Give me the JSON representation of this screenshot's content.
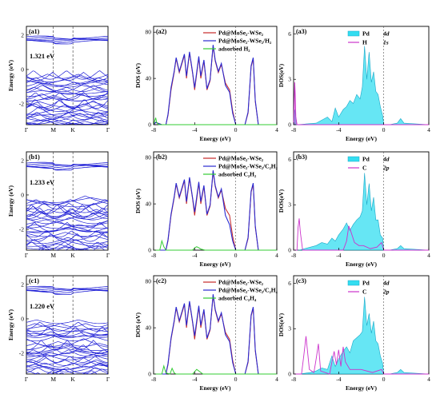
{
  "figure": {
    "rows": [
      {
        "band": {
          "label": "(a1)",
          "gap_text": "1.321 eV",
          "ylabel": "Energy (eV)",
          "yticks": [
            "2",
            "0",
            "-2"
          ],
          "xticks": [
            "Γ",
            "M",
            "K",
            "Γ"
          ]
        },
        "tdos": {
          "label": "(a2)",
          "ylabel": "DOS (eV)",
          "xlabel": "Energy (eV)",
          "yticks": [
            "0",
            "40",
            "80"
          ],
          "xticks": [
            "-8",
            "-4",
            "0",
            "4"
          ],
          "legend": [
            "Pd@MoSe₂-WSe₂",
            "Pd@MoSe₂-WSe₂/H₂",
            "adsorbed H₂"
          ]
        },
        "pdos": {
          "label": "(a3)",
          "ylabel": "DOS(eV)",
          "xlabel": "Energy (eV)",
          "yticks": [
            "0",
            "3",
            "6"
          ],
          "xticks": [
            "-8",
            "-4",
            "0",
            "4"
          ],
          "legend": [
            {
              "el": "Pd",
              "orb": "4d"
            },
            {
              "el": "H",
              "orb": "1s"
            }
          ]
        }
      },
      {
        "band": {
          "label": "(b1)",
          "gap_text": "1.233 eV",
          "ylabel": "Energy (eV)",
          "yticks": [
            "2",
            "0",
            "-2"
          ],
          "xticks": [
            "Γ",
            "M",
            "K",
            "Γ"
          ]
        },
        "tdos": {
          "label": "(b2)",
          "ylabel": "DOS (eV)",
          "xlabel": "Energy (eV)",
          "yticks": [
            "0",
            "40",
            "80"
          ],
          "xticks": [
            "-8",
            "-4",
            "0",
            "4"
          ],
          "legend": [
            "Pd@MoSe₂-WSe₂",
            "Pd@MoSe₂-WSe₂/C₂H₂",
            "adsorbed C₂H₂"
          ]
        },
        "pdos": {
          "label": "(b3)",
          "ylabel": "DOS(eV)",
          "xlabel": "Energy (eV)",
          "yticks": [
            "0",
            "3",
            "6"
          ],
          "xticks": [
            "-8",
            "-4",
            "0",
            "4"
          ],
          "legend": [
            {
              "el": "Pd",
              "orb": "4d"
            },
            {
              "el": "C",
              "orb": "2p"
            }
          ]
        }
      },
      {
        "band": {
          "label": "(c1)",
          "gap_text": "1.220 eV",
          "ylabel": "Energy (eV)",
          "yticks": [
            "2",
            "0",
            "-2"
          ],
          "xticks": [
            "Γ",
            "M",
            "K",
            "Γ"
          ]
        },
        "tdos": {
          "label": "(c2)",
          "ylabel": "DOS (eV)",
          "xlabel": "Energy (eV)",
          "yticks": [
            "0",
            "40",
            "80"
          ],
          "xticks": [
            "-8",
            "-4",
            "0",
            "4"
          ],
          "legend": [
            "Pd@MoSe₂-WSe₂",
            "Pd@MoSe₂-WSe₂/C₂H₄",
            "adsorbed C₂H₄"
          ]
        },
        "pdos": {
          "label": "(c3)",
          "ylabel": "DOS(eV)",
          "xlabel": "Energy (eV)",
          "yticks": [
            "0",
            "3",
            "6"
          ],
          "xticks": [
            "-8",
            "-4",
            "0",
            "4"
          ],
          "legend": [
            {
              "el": "Pd",
              "orb": "4d"
            },
            {
              "el": "C",
              "orb": "2p"
            }
          ]
        }
      }
    ],
    "colors": {
      "band_line": "#1f1fd6",
      "pristine": "#c62828",
      "adsorbed_system": "#2a2ad0",
      "molecule": "#33cc33",
      "pd4d_fill": "#33ddf0",
      "pd4d_line": "#1aa8c8",
      "adsorbate_orbital": "#cc33cc",
      "fermi": "#555555"
    }
  },
  "chart_data": [
    {
      "type": "line",
      "panel": "(a2)",
      "xlabel": "Energy (eV)",
      "ylabel": "DOS (eV)",
      "xlim": [
        -8,
        4
      ],
      "ylim": [
        0,
        85
      ],
      "series": [
        {
          "name": "Pd@MoSe₂-WSe₂",
          "x": [
            -8,
            -7.8,
            -7.2,
            -6.8,
            -6.6,
            -6.3,
            -6.0,
            -5.8,
            -5.5,
            -5.0,
            -4.8,
            -4.5,
            -4.2,
            -4.0,
            -3.6,
            -3.4,
            -3.1,
            -2.8,
            -2.5,
            -2.2,
            -2.0,
            -1.7,
            -1.4,
            -1.0,
            -0.6,
            -0.3,
            0,
            0.5,
            0.9,
            1.2,
            1.5,
            1.7,
            1.9,
            2.2,
            4
          ],
          "y": [
            0,
            2,
            0,
            0,
            8,
            30,
            45,
            57,
            45,
            60,
            40,
            62,
            44,
            30,
            58,
            40,
            55,
            30,
            38,
            68,
            55,
            45,
            52,
            36,
            30,
            12,
            0,
            0,
            0,
            10,
            50,
            57,
            20,
            0,
            0
          ]
        },
        {
          "name": "Pd@MoSe₂-WSe₂/H₂",
          "x": [
            -8,
            -7.8,
            -7.2,
            -6.8,
            -6.6,
            -6.3,
            -6.0,
            -5.8,
            -5.5,
            -5.0,
            -4.8,
            -4.5,
            -4.2,
            -4.0,
            -3.6,
            -3.4,
            -3.1,
            -2.8,
            -2.5,
            -2.2,
            -2.0,
            -1.7,
            -1.4,
            -1.0,
            -0.6,
            -0.3,
            0,
            0.5,
            0.9,
            1.2,
            1.5,
            1.7,
            1.9,
            2.2,
            4
          ],
          "y": [
            0,
            2,
            0,
            0,
            9,
            32,
            46,
            58,
            46,
            61,
            42,
            63,
            45,
            32,
            59,
            42,
            56,
            31,
            39,
            69,
            56,
            46,
            53,
            34,
            28,
            10,
            0,
            0,
            0,
            11,
            51,
            58,
            21,
            0,
            0
          ]
        },
        {
          "name": "adsorbed H₂",
          "x": [
            -8,
            -7.9,
            -7.8,
            -7.7,
            -7.5,
            4
          ],
          "y": [
            0,
            3,
            6,
            2,
            0,
            0
          ]
        }
      ]
    },
    {
      "type": "line",
      "panel": "(b2)",
      "xlabel": "Energy (eV)",
      "ylabel": "DOS (eV)",
      "xlim": [
        -8,
        4
      ],
      "ylim": [
        0,
        85
      ],
      "series": [
        {
          "name": "Pd@MoSe₂-WSe₂",
          "x": [
            -8,
            -7.5,
            -6.8,
            -6.6,
            -6.3,
            -6.0,
            -5.8,
            -5.5,
            -5.0,
            -4.8,
            -4.5,
            -4.2,
            -4.0,
            -3.6,
            -3.4,
            -3.1,
            -2.8,
            -2.5,
            -2.2,
            -2.0,
            -1.7,
            -1.4,
            -1.0,
            -0.6,
            -0.3,
            0,
            0.5,
            0.9,
            1.2,
            1.5,
            1.7,
            1.9,
            2.2,
            4
          ],
          "y": [
            0,
            0,
            0,
            8,
            30,
            45,
            57,
            45,
            60,
            40,
            62,
            44,
            30,
            58,
            40,
            55,
            30,
            38,
            68,
            55,
            45,
            52,
            36,
            30,
            12,
            0,
            0,
            0,
            10,
            50,
            57,
            20,
            0,
            0
          ]
        },
        {
          "name": "Pd@MoSe₂-WSe₂/C₂H₂",
          "x": [
            -8,
            -7.5,
            -6.8,
            -6.6,
            -6.3,
            -6.0,
            -5.8,
            -5.5,
            -5.0,
            -4.8,
            -4.5,
            -4.2,
            -4.0,
            -3.6,
            -3.4,
            -3.1,
            -2.8,
            -2.5,
            -2.2,
            -2.0,
            -1.7,
            -1.4,
            -1.0,
            -0.6,
            -0.3,
            0,
            0.5,
            0.9,
            1.2,
            1.5,
            1.7,
            1.9,
            2.2,
            4
          ],
          "y": [
            0,
            0,
            0,
            9,
            31,
            46,
            58,
            46,
            61,
            42,
            63,
            45,
            33,
            59,
            42,
            56,
            31,
            39,
            69,
            56,
            46,
            53,
            30,
            22,
            8,
            0,
            0,
            0,
            11,
            51,
            58,
            21,
            0,
            0
          ]
        },
        {
          "name": "adsorbed C₂H₂",
          "x": [
            -8,
            -7.4,
            -7.2,
            -7.0,
            -6.8,
            -4.2,
            -4.0,
            -3.8,
            -3.6,
            -3.4,
            -3.0,
            4
          ],
          "y": [
            0,
            0,
            8,
            3,
            0,
            0,
            2,
            3,
            2,
            1,
            0,
            0
          ]
        }
      ]
    },
    {
      "type": "line",
      "panel": "(c2)",
      "xlabel": "Energy (eV)",
      "ylabel": "DOS (eV)",
      "xlim": [
        -8,
        4
      ],
      "ylim": [
        0,
        85
      ],
      "series": [
        {
          "name": "Pd@MoSe₂-WSe₂",
          "x": [
            -8,
            -7.5,
            -6.8,
            -6.6,
            -6.3,
            -6.0,
            -5.8,
            -5.5,
            -5.0,
            -4.8,
            -4.5,
            -4.2,
            -4.0,
            -3.6,
            -3.4,
            -3.1,
            -2.8,
            -2.5,
            -2.2,
            -2.0,
            -1.7,
            -1.4,
            -1.0,
            -0.6,
            -0.3,
            0,
            0.5,
            0.9,
            1.2,
            1.5,
            1.7,
            1.9,
            2.2,
            4
          ],
          "y": [
            0,
            0,
            0,
            8,
            30,
            45,
            57,
            45,
            60,
            40,
            62,
            44,
            30,
            58,
            40,
            55,
            30,
            38,
            68,
            55,
            45,
            52,
            36,
            30,
            12,
            0,
            0,
            0,
            10,
            50,
            57,
            20,
            0,
            0
          ]
        },
        {
          "name": "Pd@MoSe₂-WSe₂/C₂H₄",
          "x": [
            -8,
            -7.5,
            -6.8,
            -6.6,
            -6.3,
            -6.0,
            -5.8,
            -5.5,
            -5.0,
            -4.8,
            -4.5,
            -4.2,
            -4.0,
            -3.6,
            -3.4,
            -3.1,
            -2.8,
            -2.5,
            -2.2,
            -2.0,
            -1.7,
            -1.4,
            -1.0,
            -0.6,
            -0.3,
            0,
            0.5,
            0.9,
            1.2,
            1.5,
            1.7,
            1.9,
            2.2,
            4
          ],
          "y": [
            0,
            0,
            0,
            9,
            31,
            46,
            58,
            46,
            61,
            42,
            63,
            45,
            33,
            59,
            42,
            56,
            31,
            39,
            69,
            56,
            46,
            53,
            34,
            28,
            10,
            0,
            0,
            0,
            11,
            51,
            58,
            21,
            0,
            0
          ]
        },
        {
          "name": "adsorbed C₂H₄",
          "x": [
            -8,
            -7.2,
            -7.0,
            -6.8,
            -6.4,
            -6.2,
            -6.0,
            -5.8,
            -4.2,
            -4.0,
            -3.8,
            -3.5,
            -3.2,
            4
          ],
          "y": [
            0,
            0,
            7,
            1,
            0,
            5,
            1,
            0,
            0,
            2,
            4,
            2,
            0,
            0
          ]
        }
      ]
    },
    {
      "type": "area",
      "panel": "(a3)",
      "xlabel": "Energy (eV)",
      "ylabel": "DOS(eV)",
      "xlim": [
        -8,
        4
      ],
      "ylim": [
        0,
        6.5
      ],
      "series": [
        {
          "name": "Pd 4d",
          "x": [
            -8,
            -7.9,
            -7.8,
            -7.7,
            -6.0,
            -5.0,
            -4.6,
            -4.3,
            -4.0,
            -3.6,
            -3.3,
            -3.0,
            -2.7,
            -2.4,
            -2.1,
            -1.9,
            -1.7,
            -1.5,
            -1.3,
            -1.1,
            -0.9,
            -0.7,
            -0.5,
            -0.3,
            -0.1,
            0,
            0.5,
            1.2,
            1.5,
            1.8,
            4
          ],
          "y": [
            0,
            1.0,
            0.5,
            0,
            0.1,
            0.5,
            0.2,
            1.1,
            0.5,
            1.0,
            1.2,
            1.6,
            1.4,
            2.0,
            1.7,
            2.5,
            5.2,
            3.0,
            4.8,
            2.8,
            3.5,
            2.2,
            2.0,
            1.2,
            0.6,
            0,
            0,
            0.1,
            0.4,
            0.1,
            0
          ]
        },
        {
          "name": "H 1s",
          "x": [
            -8,
            -7.95,
            -7.9,
            -7.85,
            -7.8,
            -7.7,
            4
          ],
          "y": [
            0,
            1.5,
            2.8,
            2.0,
            0.5,
            0,
            0
          ]
        }
      ]
    },
    {
      "type": "area",
      "panel": "(b3)",
      "xlabel": "Energy (eV)",
      "ylabel": "DOS(eV)",
      "xlim": [
        -8,
        4
      ],
      "ylim": [
        0,
        6.5
      ],
      "series": [
        {
          "name": "Pd 4d",
          "x": [
            -8,
            -7.5,
            -6.5,
            -6.0,
            -5.5,
            -5.0,
            -4.6,
            -4.3,
            -4.0,
            -3.6,
            -3.3,
            -3.0,
            -2.7,
            -2.4,
            -2.1,
            -1.9,
            -1.7,
            -1.5,
            -1.3,
            -1.1,
            -0.9,
            -0.7,
            -0.5,
            -0.3,
            -0.1,
            0,
            0.5,
            1.2,
            1.5,
            1.8,
            4
          ],
          "y": [
            0,
            0,
            0.2,
            0.3,
            0.5,
            0.4,
            0.8,
            0.6,
            1.0,
            1.4,
            1.8,
            1.3,
            1.7,
            2.0,
            2.2,
            2.6,
            5.1,
            3.0,
            4.4,
            2.6,
            3.5,
            2.0,
            2.0,
            1.0,
            0.8,
            0,
            0,
            0.1,
            0.3,
            0.1,
            0
          ]
        },
        {
          "name": "C 2p",
          "x": [
            -8,
            -7.7,
            -7.6,
            -7.5,
            -7.4,
            -7.2,
            -3.6,
            -3.3,
            -3.1,
            -2.9,
            -2.6,
            -2.2,
            -1.8,
            -1.2,
            -0.6,
            -0.2,
            0,
            4
          ],
          "y": [
            0,
            0,
            1.5,
            2.1,
            1.2,
            0,
            0,
            0.6,
            1.6,
            1.2,
            0.5,
            0.3,
            0.3,
            0.1,
            0.2,
            0.5,
            0,
            0
          ]
        }
      ]
    },
    {
      "type": "area",
      "panel": "(c3)",
      "xlabel": "Energy (eV)",
      "ylabel": "DOS(eV)",
      "xlim": [
        -8,
        4
      ],
      "ylim": [
        0,
        6.5
      ],
      "series": [
        {
          "name": "Pd 4d",
          "x": [
            -8,
            -7.5,
            -6.5,
            -6.0,
            -5.5,
            -5.0,
            -4.6,
            -4.3,
            -4.0,
            -3.6,
            -3.3,
            -3.0,
            -2.7,
            -2.4,
            -2.1,
            -1.9,
            -1.7,
            -1.5,
            -1.3,
            -1.1,
            -0.9,
            -0.7,
            -0.5,
            -0.3,
            -0.1,
            0,
            0.5,
            1.2,
            1.5,
            1.8,
            4
          ],
          "y": [
            0,
            0,
            0.1,
            0.2,
            0.4,
            0.3,
            1.2,
            0.5,
            1.0,
            1.5,
            1.8,
            1.4,
            2.2,
            2.4,
            2.6,
            2.8,
            5.1,
            3.2,
            4.0,
            2.7,
            3.5,
            2.2,
            2.0,
            1.2,
            0.7,
            0,
            0,
            0.1,
            0.3,
            0.1,
            0
          ]
        },
        {
          "name": "C 2p",
          "x": [
            -8,
            -7.3,
            -7.1,
            -6.9,
            -6.6,
            -6.2,
            -6.0,
            -5.8,
            -5.6,
            -4.8,
            -4.6,
            -4.4,
            -4.2,
            -4.0,
            -3.8,
            -3.6,
            -3.4,
            -3.0,
            -2.0,
            -1.0,
            -0.2,
            0,
            4
          ],
          "y": [
            0,
            0,
            1.2,
            2.5,
            0.3,
            0.1,
            1.0,
            2.0,
            0.2,
            0,
            0.8,
            1.5,
            0.6,
            1.6,
            0.5,
            1.8,
            0.8,
            0.3,
            0.3,
            0.1,
            0.3,
            0,
            0
          ]
        }
      ]
    }
  ]
}
